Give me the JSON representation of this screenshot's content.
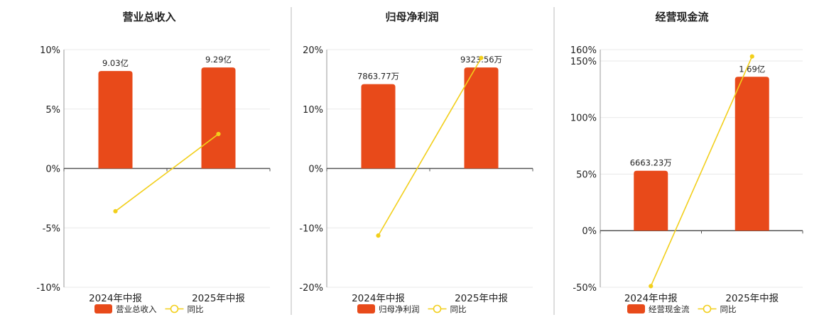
{
  "colors": {
    "bar": "#e84a1a",
    "line": "#f2cf1b",
    "grid": "#e9e9e9",
    "axis": "#555555",
    "divider": "#bbbbbb",
    "text": "#222222"
  },
  "legend": {
    "line_label": "同比"
  },
  "chart_data": [
    {
      "type": "bar",
      "title": "营业总收入",
      "categories": [
        "2024年中报",
        "2025年中报"
      ],
      "series": [
        {
          "name": "营业总收入",
          "type": "bar",
          "values": [
            8.2,
            8.5
          ],
          "labels": [
            "9.03亿",
            "9.29亿"
          ]
        },
        {
          "name": "同比",
          "type": "line",
          "values": [
            -3.6,
            2.9
          ]
        }
      ],
      "ylim": [
        -10,
        10
      ],
      "ticks": [
        10,
        5,
        0,
        -5,
        -10
      ],
      "tick_labels": [
        "10%",
        "5%",
        "0%",
        "-5%",
        "-10%"
      ],
      "grid": true,
      "legend_position": "bottom"
    },
    {
      "type": "bar",
      "title": "归母净利润",
      "categories": [
        "2024年中报",
        "2025年中报"
      ],
      "series": [
        {
          "name": "归母净利润",
          "type": "bar",
          "values": [
            14.2,
            17.0
          ],
          "labels": [
            "7863.77万",
            "9323.56万"
          ]
        },
        {
          "name": "同比",
          "type": "line",
          "values": [
            -11.3,
            18.6
          ]
        }
      ],
      "ylim": [
        -20,
        20
      ],
      "ticks": [
        20,
        10,
        0,
        -10,
        -20
      ],
      "tick_labels": [
        "20%",
        "10%",
        "0%",
        "-10%",
        "-20%"
      ],
      "grid": true,
      "legend_position": "bottom"
    },
    {
      "type": "bar",
      "title": "经营现金流",
      "categories": [
        "2024年中报",
        "2025年中报"
      ],
      "series": [
        {
          "name": "经营现金流",
          "type": "bar",
          "values": [
            53,
            136
          ],
          "labels": [
            "6663.23万",
            "1.69亿"
          ]
        },
        {
          "name": "同比",
          "type": "line",
          "values": [
            -49,
            154
          ]
        }
      ],
      "ylim": [
        -50,
        160
      ],
      "ticks": [
        160,
        150,
        100,
        50,
        0,
        -50
      ],
      "tick_labels": [
        "160%",
        "150%",
        "100%",
        "50%",
        "0%",
        "-50%"
      ],
      "grid": true,
      "legend_position": "bottom"
    }
  ]
}
